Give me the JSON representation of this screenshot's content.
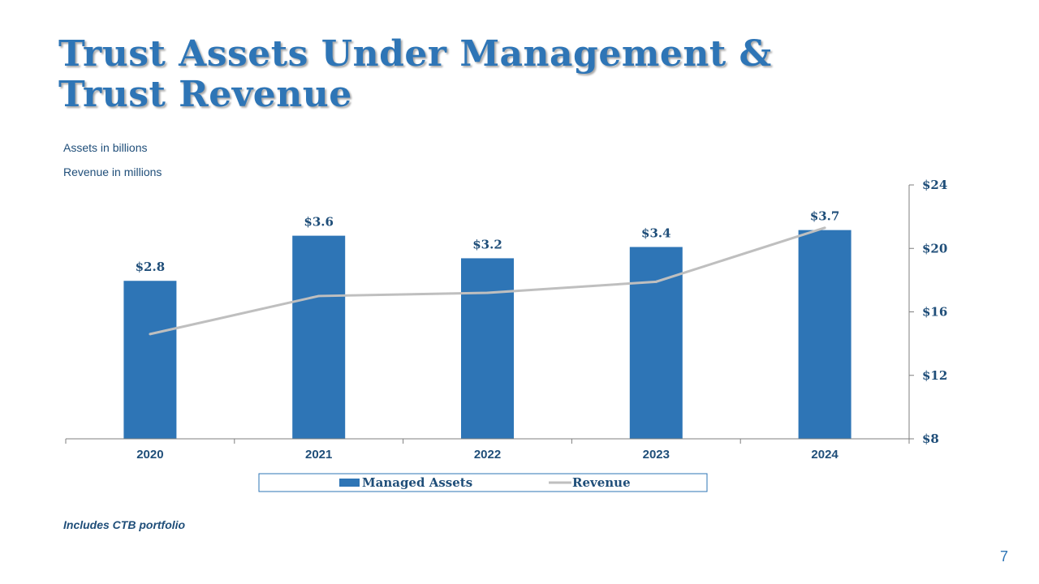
{
  "slide": {
    "title_line1": "Trust Assets Under Management &",
    "title_line2": "Trust Revenue",
    "note_assets": "Assets in billions",
    "note_revenue": "Revenue in millions",
    "footnote": "Includes CTB portfolio",
    "page_number": "7"
  },
  "colors": {
    "title": "#2E75B6",
    "bar": "#2E75B6",
    "line": "#BFBFBF",
    "text": "#1F4E79"
  },
  "chart_data": {
    "type": "bar",
    "categories": [
      "2020",
      "2021",
      "2022",
      "2023",
      "2024"
    ],
    "series": [
      {
        "name": "Managed Assets",
        "type": "bar",
        "axis": "left",
        "values": [
          2.8,
          3.6,
          3.2,
          3.4,
          3.7
        ],
        "labels": [
          "$2.8",
          "$3.6",
          "$3.2",
          "$3.4",
          "$3.7"
        ]
      },
      {
        "name": "Revenue",
        "type": "line",
        "axis": "right",
        "values": [
          14.6,
          17.0,
          17.2,
          17.9,
          21.3
        ]
      }
    ],
    "left_axis": {
      "range": [
        0,
        4.5
      ],
      "visible": false
    },
    "right_axis": {
      "range": [
        8,
        24
      ],
      "ticks": [
        8,
        12,
        16,
        20,
        24
      ],
      "tick_labels": [
        "$8",
        "$12",
        "$16",
        "$20",
        "$24"
      ]
    },
    "legend": {
      "position": "bottom",
      "entries": [
        "Managed Assets",
        "Revenue"
      ]
    },
    "grid": false
  }
}
